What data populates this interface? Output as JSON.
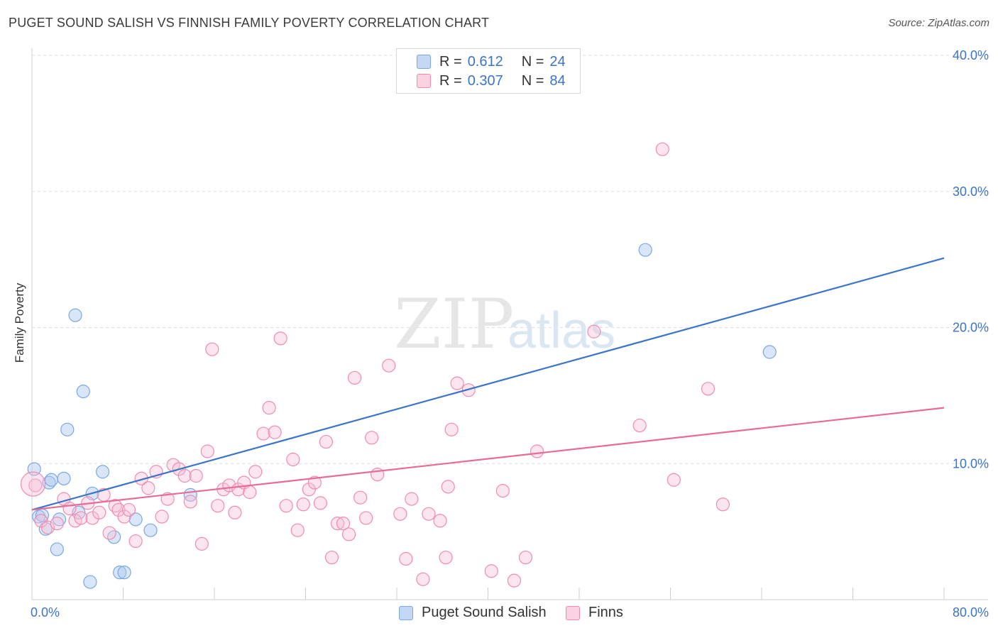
{
  "title": "PUGET SOUND SALISH VS FINNISH FAMILY POVERTY CORRELATION CHART",
  "source": "Source: ZipAtlas.com",
  "watermark": {
    "zip": "ZIP",
    "atlas": "atlas"
  },
  "legend": {
    "rows": [
      {
        "r_label": "R =",
        "r_value": "0.612",
        "n_label": "N =",
        "n_value": "24",
        "color": "#7aa7e6",
        "fill": "#c4d8f5"
      },
      {
        "r_label": "R =",
        "r_value": "0.307",
        "n_label": "N =",
        "n_value": "84",
        "color": "#f08bb0",
        "fill": "#fad2e0"
      }
    ]
  },
  "bottom_legend": [
    {
      "label": "Puget Sound Salish",
      "color": "#7aa7e6",
      "fill": "#c4d8f5"
    },
    {
      "label": "Finns",
      "color": "#f08bb0",
      "fill": "#fad2e0"
    }
  ],
  "chart_data": {
    "type": "scatter",
    "title": "PUGET SOUND SALISH VS FINNISH FAMILY POVERTY CORRELATION CHART",
    "xlabel": "",
    "ylabel": "Family Poverty",
    "xlim": [
      0,
      80
    ],
    "ylim": [
      0,
      40
    ],
    "x_tick_labels": [
      "0.0%",
      "80.0%"
    ],
    "y_tick_labels": [
      "10.0%",
      "20.0%",
      "30.0%",
      "40.0%"
    ],
    "y_ticks": [
      10,
      20,
      30,
      40
    ],
    "grid": true,
    "legend_position": "top-center",
    "series": [
      {
        "name": "Puget Sound Salish",
        "color": "#3b74c8",
        "points": [
          [
            0.2,
            9.6
          ],
          [
            0.6,
            6.1
          ],
          [
            0.9,
            6.2
          ],
          [
            1.2,
            5.2
          ],
          [
            1.5,
            8.6
          ],
          [
            1.7,
            8.8
          ],
          [
            2.2,
            3.7
          ],
          [
            2.4,
            5.9
          ],
          [
            2.8,
            8.9
          ],
          [
            3.1,
            12.5
          ],
          [
            3.8,
            20.9
          ],
          [
            4.1,
            6.4
          ],
          [
            4.5,
            15.3
          ],
          [
            5.1,
            1.3
          ],
          [
            5.3,
            7.8
          ],
          [
            6.2,
            9.4
          ],
          [
            7.2,
            4.6
          ],
          [
            7.7,
            2.0
          ],
          [
            8.1,
            2.0
          ],
          [
            9.1,
            5.9
          ],
          [
            10.4,
            5.1
          ],
          [
            13.9,
            7.7
          ],
          [
            53.8,
            25.7
          ],
          [
            64.7,
            18.2
          ]
        ],
        "trend": {
          "x": [
            0,
            80
          ],
          "y": [
            6.6,
            25.1
          ]
        }
      },
      {
        "name": "Finns",
        "color": "#e66c98",
        "points": [
          [
            0.3,
            8.4
          ],
          [
            0.8,
            5.8
          ],
          [
            1.4,
            5.3
          ],
          [
            2.2,
            5.6
          ],
          [
            2.8,
            7.4
          ],
          [
            3.3,
            6.7
          ],
          [
            3.8,
            5.8
          ],
          [
            4.3,
            6.0
          ],
          [
            4.9,
            7.1
          ],
          [
            5.3,
            6.0
          ],
          [
            5.9,
            6.4
          ],
          [
            6.3,
            7.7
          ],
          [
            6.8,
            4.9
          ],
          [
            7.3,
            6.9
          ],
          [
            7.6,
            6.6
          ],
          [
            8.1,
            6.1
          ],
          [
            8.5,
            6.6
          ],
          [
            9.1,
            4.3
          ],
          [
            9.6,
            8.9
          ],
          [
            10.2,
            8.2
          ],
          [
            10.9,
            9.4
          ],
          [
            11.4,
            6.1
          ],
          [
            11.9,
            7.4
          ],
          [
            12.4,
            9.9
          ],
          [
            12.9,
            9.6
          ],
          [
            13.4,
            9.1
          ],
          [
            13.9,
            7.2
          ],
          [
            14.4,
            9.1
          ],
          [
            14.9,
            4.1
          ],
          [
            15.4,
            10.9
          ],
          [
            15.8,
            18.4
          ],
          [
            16.3,
            6.9
          ],
          [
            16.8,
            8.1
          ],
          [
            17.3,
            8.4
          ],
          [
            17.8,
            6.4
          ],
          [
            18.1,
            8.1
          ],
          [
            18.6,
            8.6
          ],
          [
            19.1,
            7.9
          ],
          [
            19.6,
            9.4
          ],
          [
            20.3,
            12.2
          ],
          [
            20.8,
            14.1
          ],
          [
            21.3,
            12.3
          ],
          [
            21.8,
            19.2
          ],
          [
            22.3,
            6.9
          ],
          [
            22.9,
            10.3
          ],
          [
            23.3,
            5.1
          ],
          [
            23.8,
            7.0
          ],
          [
            24.3,
            8.1
          ],
          [
            24.8,
            8.6
          ],
          [
            25.3,
            7.1
          ],
          [
            25.8,
            11.6
          ],
          [
            26.3,
            3.1
          ],
          [
            26.8,
            5.6
          ],
          [
            27.3,
            5.6
          ],
          [
            27.8,
            4.8
          ],
          [
            28.3,
            16.3
          ],
          [
            28.8,
            7.5
          ],
          [
            29.3,
            6.0
          ],
          [
            29.8,
            11.9
          ],
          [
            30.3,
            9.2
          ],
          [
            31.3,
            17.2
          ],
          [
            32.3,
            6.3
          ],
          [
            32.8,
            3.0
          ],
          [
            33.3,
            7.4
          ],
          [
            34.3,
            1.5
          ],
          [
            34.8,
            6.3
          ],
          [
            35.8,
            5.8
          ],
          [
            36.3,
            3.1
          ],
          [
            36.5,
            8.3
          ],
          [
            36.8,
            12.5
          ],
          [
            37.3,
            15.9
          ],
          [
            38.3,
            15.4
          ],
          [
            40.3,
            2.1
          ],
          [
            41.3,
            8.0
          ],
          [
            42.3,
            1.4
          ],
          [
            43.3,
            3.1
          ],
          [
            44.3,
            10.9
          ],
          [
            49.3,
            19.7
          ],
          [
            53.3,
            12.8
          ],
          [
            55.3,
            33.1
          ],
          [
            56.3,
            8.8
          ],
          [
            59.3,
            15.5
          ],
          [
            60.6,
            7.0
          ],
          [
            0.1,
            8.5
          ]
        ],
        "trend": {
          "x": [
            0,
            80
          ],
          "y": [
            6.6,
            14.1
          ]
        }
      }
    ]
  }
}
